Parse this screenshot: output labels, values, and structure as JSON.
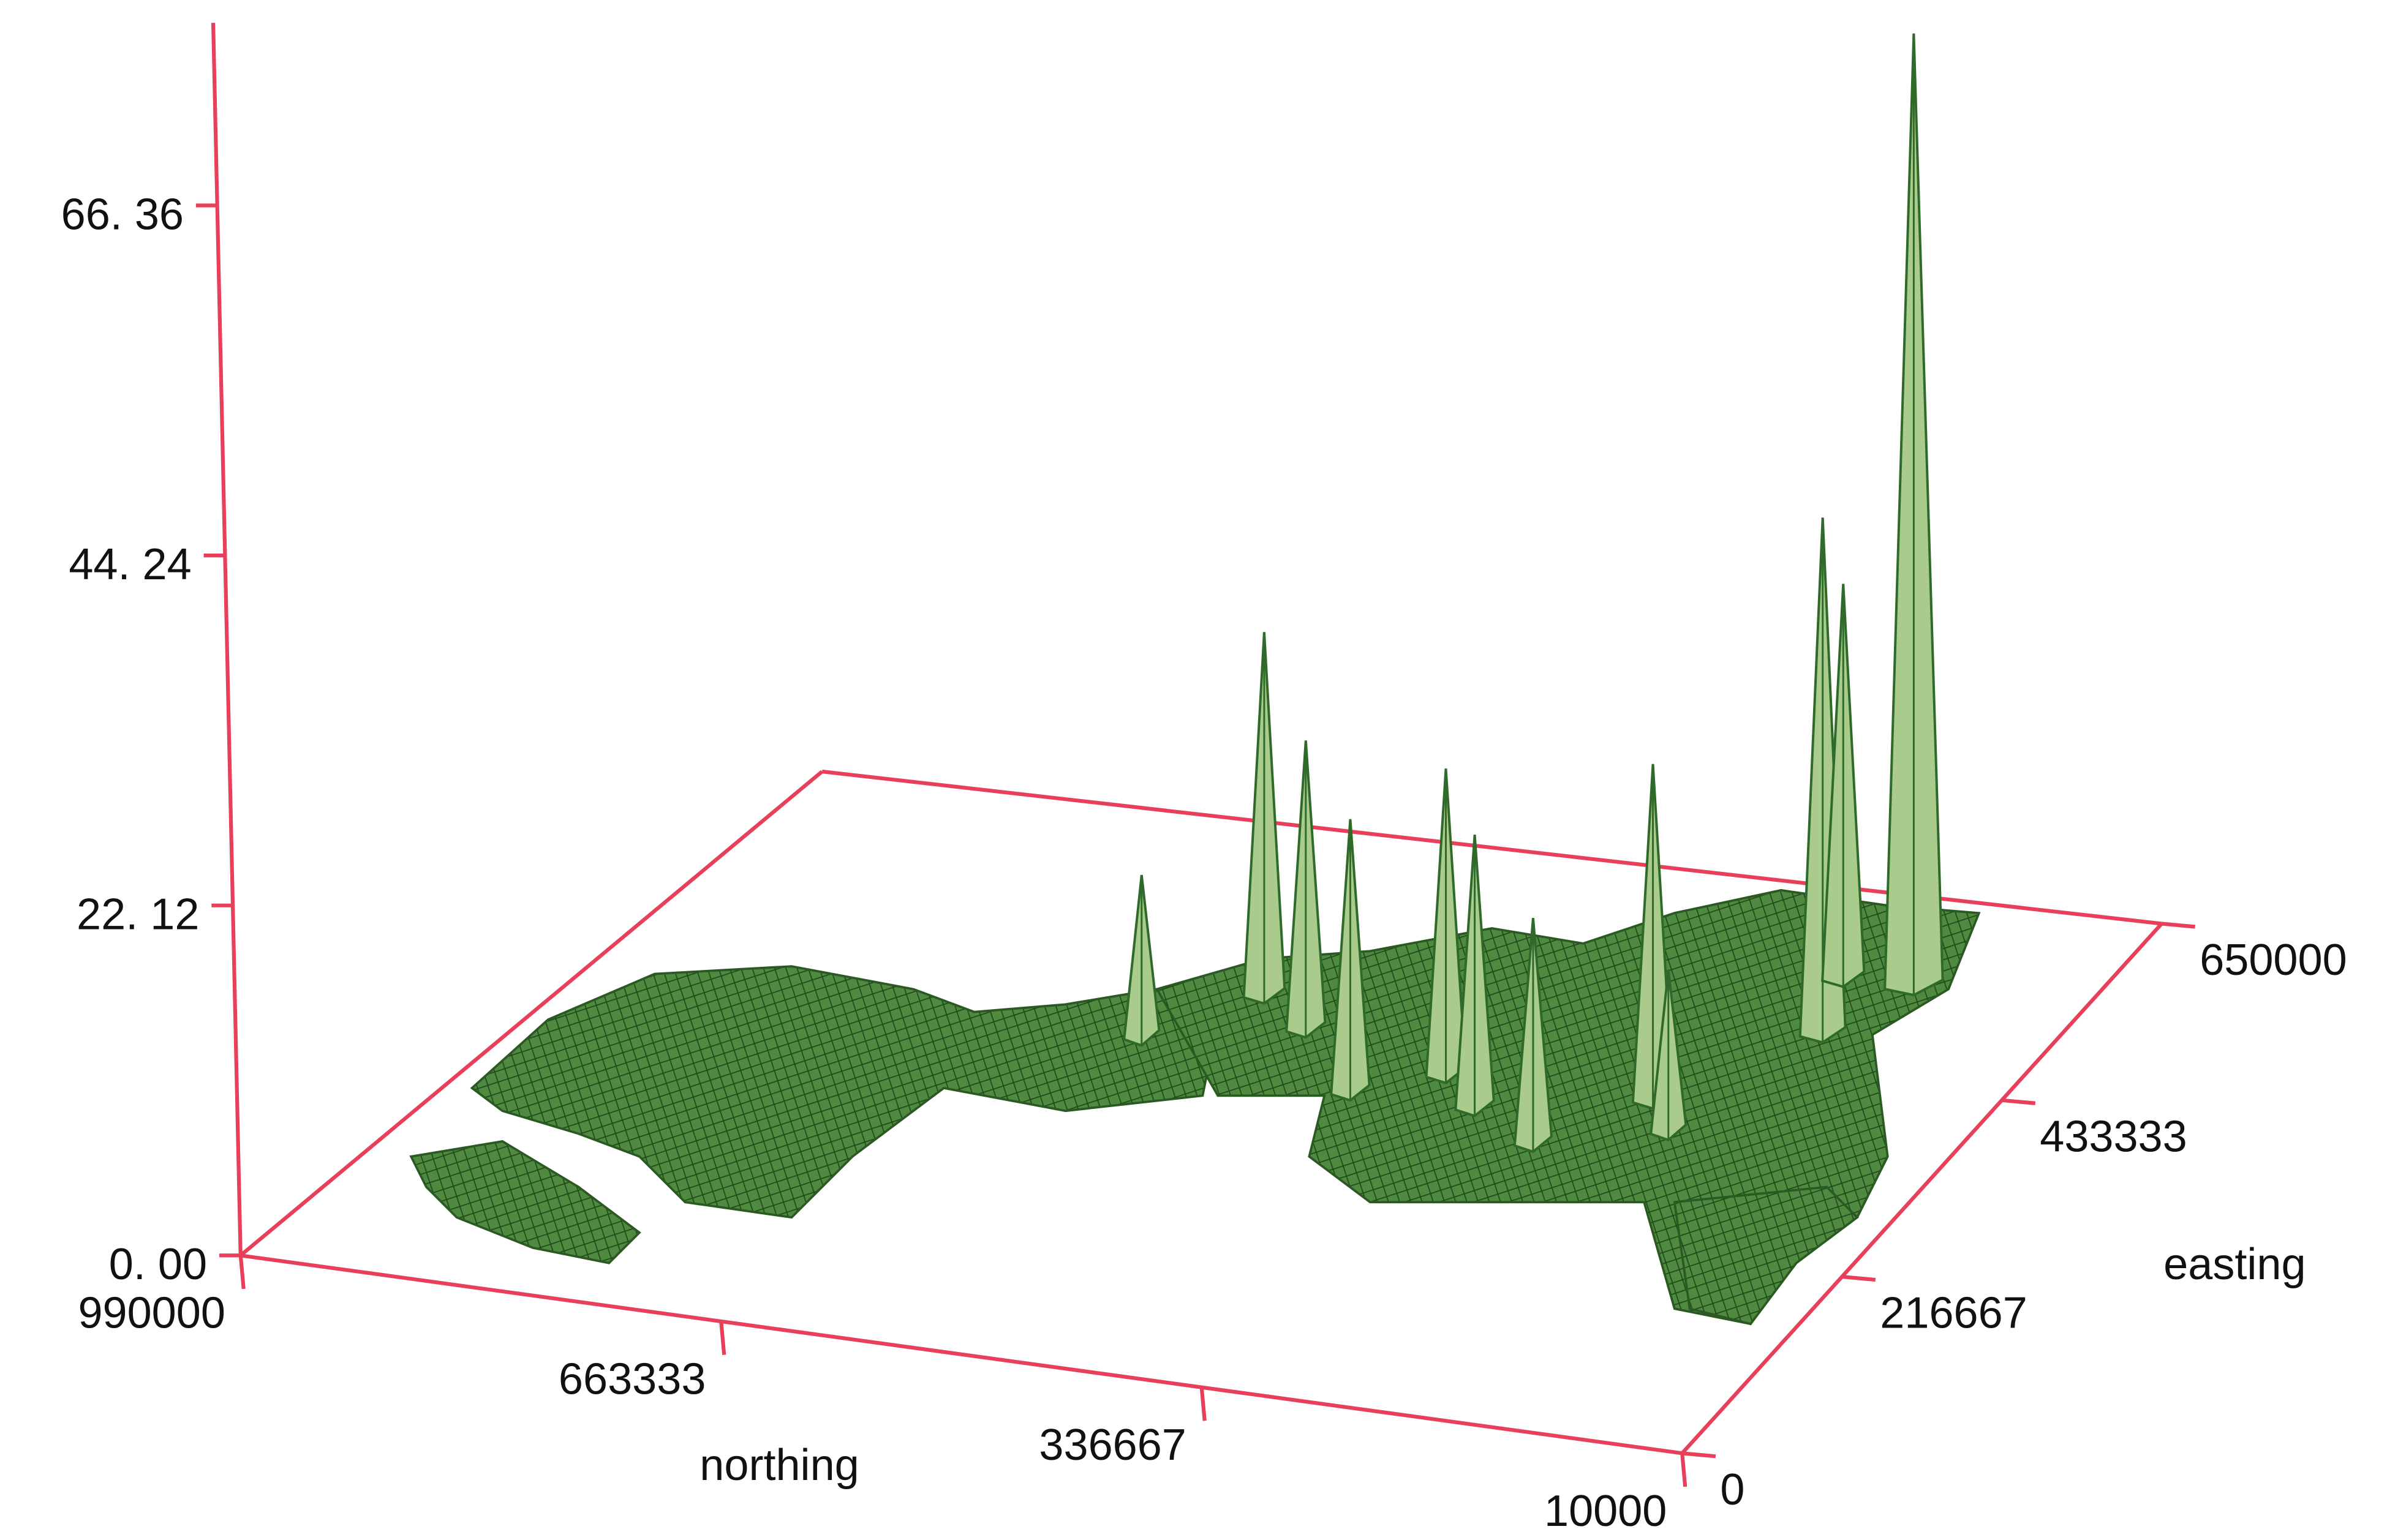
{
  "chart_data": {
    "type": "surface3d",
    "xlabel": "northing",
    "ylabel": "easting",
    "xlim": [
      990000,
      10000
    ],
    "xticks": [
      990000,
      663333,
      336667,
      10000
    ],
    "ylim": [
      0,
      650000
    ],
    "yticks": [
      0,
      216667,
      433333,
      650000
    ],
    "zlim": [
      0,
      77.9
    ],
    "zticks": [
      {
        "value": 0,
        "label": "0. 00"
      },
      {
        "value": 22.12,
        "label": "22. 12"
      },
      {
        "value": 44.24,
        "label": "44. 24"
      },
      {
        "value": 66.36,
        "label": "66. 36"
      }
    ],
    "axis_color": "#e8405a",
    "surface_color": "#2f6a2a",
    "peak_color": "#a9cc8c",
    "x": [
      137000,
      167000,
      188000,
      549000,
      500000,
      382000,
      343000,
      235000,
      431000,
      598000,
      284000,
      206000
    ],
    "y": [
      552000,
      487000,
      552000,
      455000,
      422000,
      390000,
      357000,
      390000,
      357000,
      390000,
      325000,
      357000
    ],
    "z": [
      60,
      32.4,
      24.7,
      22.7,
      18,
      19.1,
      17,
      21,
      17,
      10,
      14,
      10
    ]
  }
}
